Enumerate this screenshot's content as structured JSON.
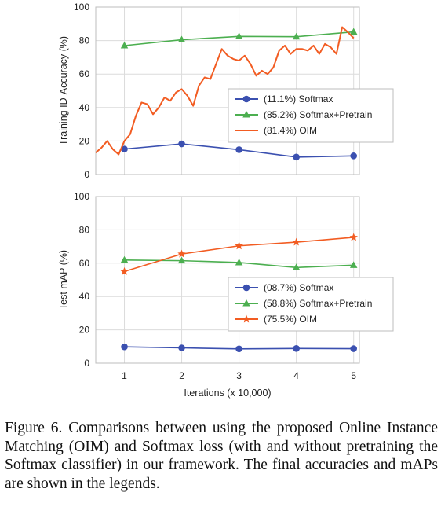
{
  "colors": {
    "softmax": "#3b50b0",
    "softmax_pretrain": "#4caf50",
    "oim": "#f25c22",
    "grid": "#dcdcdc",
    "frame": "#bdbdbd"
  },
  "chart_data": [
    {
      "type": "line",
      "ylabel": "Training ID-Accuracy (%)",
      "xlabel": "",
      "xlim": [
        0.5,
        5.1
      ],
      "ylim": [
        0,
        100
      ],
      "xticks": [
        "1",
        "2",
        "3",
        "4",
        "5"
      ],
      "yticks": [
        "0",
        "20",
        "40",
        "60",
        "80",
        "100"
      ],
      "grid": true,
      "legend_position": "center-right",
      "series": [
        {
          "name": "(11.1%) Softmax",
          "marker": "circle",
          "x": [
            1,
            2,
            3,
            4,
            5
          ],
          "y": [
            15.2,
            18.3,
            14.8,
            10.4,
            11.1
          ]
        },
        {
          "name": "(85.2%) Softmax+Pretrain",
          "marker": "triangle",
          "x": [
            1,
            2,
            3,
            4,
            5
          ],
          "y": [
            77,
            80.5,
            82.5,
            82.3,
            85.2
          ]
        },
        {
          "name": "(81.4%) OIM",
          "marker": "none",
          "x": [
            0.5,
            0.6,
            0.7,
            0.8,
            0.9,
            1.0,
            1.1,
            1.2,
            1.3,
            1.4,
            1.5,
            1.6,
            1.7,
            1.8,
            1.9,
            2.0,
            2.1,
            2.2,
            2.3,
            2.4,
            2.5,
            2.6,
            2.7,
            2.8,
            2.9,
            3.0,
            3.1,
            3.2,
            3.3,
            3.4,
            3.5,
            3.6,
            3.7,
            3.8,
            3.9,
            4.0,
            4.1,
            4.2,
            4.3,
            4.4,
            4.5,
            4.6,
            4.7,
            4.8,
            4.9,
            5.0
          ],
          "y": [
            13,
            16,
            20,
            15,
            12,
            20,
            24,
            35,
            43,
            42,
            36,
            40,
            46,
            44,
            49,
            51,
            47,
            41,
            53,
            58,
            57,
            66,
            75,
            71,
            69,
            68,
            71,
            66,
            59,
            62,
            60,
            64,
            74,
            77,
            72,
            75,
            75,
            74,
            77,
            72,
            78,
            76,
            72,
            88,
            85,
            81.4
          ]
        }
      ]
    },
    {
      "type": "line",
      "ylabel": "Test mAP (%)",
      "xlabel": "Iterations (x 10,000)",
      "xlim": [
        0.5,
        5.1
      ],
      "ylim": [
        0,
        100
      ],
      "xticks": [
        "1",
        "2",
        "3",
        "4",
        "5"
      ],
      "yticks": [
        "0",
        "20",
        "40",
        "60",
        "80",
        "100"
      ],
      "grid": true,
      "legend_position": "center-right",
      "series": [
        {
          "name": "(08.7%) Softmax",
          "marker": "circle",
          "x": [
            1,
            2,
            3,
            4,
            5
          ],
          "y": [
            9.8,
            9.2,
            8.6,
            8.8,
            8.7
          ]
        },
        {
          "name": "(58.8%) Softmax+Pretrain",
          "marker": "triangle",
          "x": [
            1,
            2,
            3,
            4,
            5
          ],
          "y": [
            61.9,
            61.5,
            60.4,
            57.4,
            58.8
          ]
        },
        {
          "name": "(75.5%) OIM",
          "marker": "star",
          "x": [
            1,
            2,
            3,
            4,
            5
          ],
          "y": [
            55,
            65.5,
            70.4,
            72.6,
            75.5
          ]
        }
      ]
    }
  ],
  "caption": "Figure 6. Comparisons between using the proposed Online Instance Matching (OIM) and Softmax loss (with and without pretraining the Softmax classifier) in our framework. The final accuracies and mAPs are shown in the legends."
}
